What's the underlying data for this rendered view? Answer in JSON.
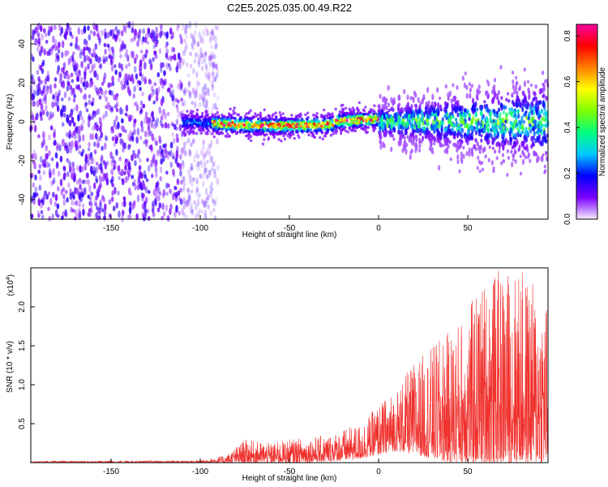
{
  "title": "C2E5.2025.035.00.49.R22",
  "colors": {
    "snr_line": "#f0302c",
    "background": "#ffffff",
    "axis": "#000000"
  },
  "colorbar": {
    "label": "Normalized spectral amplitude",
    "ticks": [
      "0.0",
      "0.2",
      "0.4",
      "0.6",
      "0.8"
    ],
    "tick_values": [
      0.0,
      0.2,
      0.4,
      0.6,
      0.8
    ],
    "range": [
      0,
      0.85
    ],
    "colormap": [
      "#f7ecff",
      "#7b00ff",
      "#0000ff",
      "#00c8ff",
      "#00ff7f",
      "#7fff00",
      "#ffff00",
      "#ff7f00",
      "#ff0000",
      "#ff00a0"
    ]
  },
  "chart_data": [
    {
      "type": "heatmap",
      "title": "",
      "xlabel": "Height of straight line (km)",
      "ylabel": "Frequency (Hz)",
      "xlim": [
        -195,
        95
      ],
      "ylim": [
        -50,
        50
      ],
      "x_ticks": [
        -150,
        -100,
        -50,
        0,
        50
      ],
      "x_tick_labels": [
        "-150",
        "-100",
        "-50",
        "0",
        "50"
      ],
      "y_ticks": [
        -40,
        -20,
        0,
        20,
        40
      ],
      "y_tick_labels": [
        "-40",
        "-20",
        "0",
        "20",
        "40"
      ],
      "grid": false,
      "regions": [
        {
          "x_range": [
            -195,
            -90
          ],
          "frequency_spread_hz": 50,
          "peak_amplitude": 0.15
        },
        {
          "x_range": [
            -110,
            0
          ],
          "frequency_center_hz": 0,
          "frequency_spread_hz": 5,
          "peak_amplitude": 0.85
        },
        {
          "x_range": [
            0,
            95
          ],
          "frequency_center_hz": 0,
          "frequency_spread_hz": 20,
          "peak_amplitude": 0.45
        }
      ]
    },
    {
      "type": "line",
      "title": "",
      "xlabel": "Height of straight line (km)",
      "ylabel": "SNR (10 * v/v)",
      "y_multiplier_label": "(x10",
      "y_multiplier_exponent": "4",
      "y_multiplier_close": ")",
      "xlim": [
        -195,
        95
      ],
      "ylim": [
        0,
        2.5
      ],
      "x_ticks": [
        -150,
        -100,
        -50,
        0,
        50
      ],
      "x_tick_labels": [
        "-150",
        "-100",
        "-50",
        "0",
        "50"
      ],
      "y_ticks": [
        0.5,
        1.0,
        1.5,
        2.0
      ],
      "y_tick_labels": [
        "0.5",
        "1.0",
        "1.5",
        "2.0"
      ],
      "grid": false,
      "envelope": {
        "x": [
          -195,
          -100,
          -85,
          -75,
          -60,
          -50,
          -30,
          -10,
          0,
          10,
          20,
          30,
          40,
          50,
          60,
          70,
          80,
          95
        ],
        "y_min": [
          0.0,
          0.0,
          0.0,
          0.0,
          0.0,
          0.0,
          0.01,
          0.05,
          0.1,
          0.15,
          0.1,
          0.05,
          0.0,
          0.0,
          0.0,
          0.0,
          0.0,
          0.0
        ],
        "y_max": [
          0.02,
          0.03,
          0.1,
          0.3,
          0.25,
          0.3,
          0.35,
          0.5,
          0.75,
          0.95,
          1.3,
          1.5,
          1.7,
          2.0,
          2.4,
          2.5,
          2.5,
          2.1
        ]
      }
    }
  ]
}
